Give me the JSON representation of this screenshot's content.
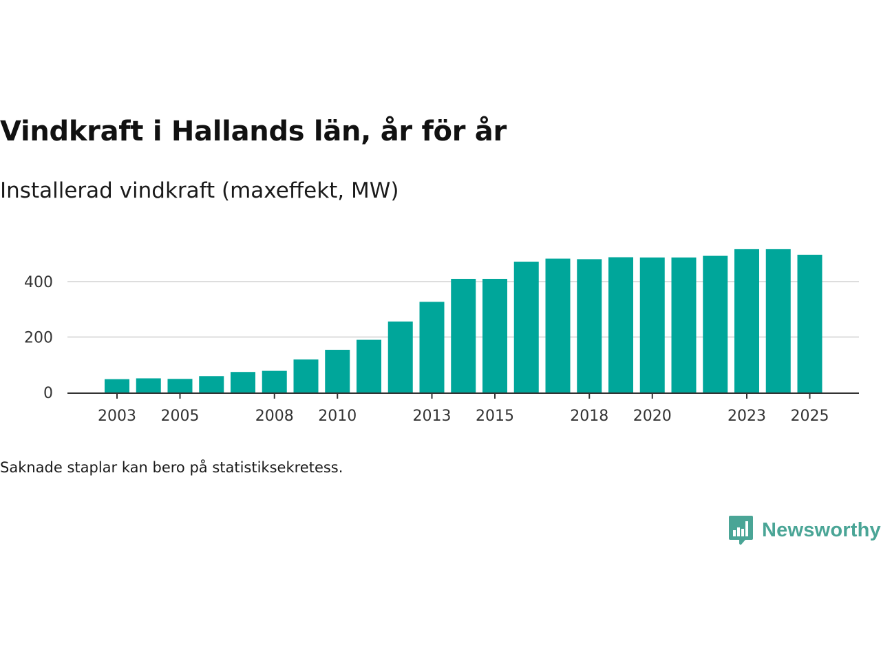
{
  "title": "Vindkraft i Hallands län, år för år",
  "subtitle": "Installerad vindkraft (maxeffekt, MW)",
  "note": "Saknade staplar kan bero på statistiksekretess.",
  "brand": {
    "name": "Newsworthy"
  },
  "colors": {
    "bar": "#00a69a",
    "grid": "#dddddd",
    "axis": "#333333",
    "brand": "#4aa596"
  },
  "chart_data": {
    "type": "bar",
    "title": "Vindkraft i Hallands län, år för år",
    "subtitle": "Installerad vindkraft (maxeffekt, MW)",
    "xlabel": "",
    "ylabel": "",
    "ylim": [
      0,
      520
    ],
    "yticks": [
      0,
      200,
      400
    ],
    "grid": true,
    "categories": [
      "2003",
      "2004",
      "2005",
      "2006",
      "2007",
      "2008",
      "2009",
      "2010",
      "2011",
      "2012",
      "2013",
      "2014",
      "2015",
      "2016",
      "2017",
      "2018",
      "2019",
      "2020",
      "2021",
      "2022",
      "2023",
      "2024",
      "2025"
    ],
    "values": [
      48,
      51,
      49,
      59,
      74,
      78,
      119,
      154,
      190,
      256,
      327,
      410,
      410,
      472,
      483,
      481,
      488,
      487,
      487,
      493,
      517,
      517,
      497
    ],
    "xtick_labels": [
      "2003",
      "2005",
      "2008",
      "2010",
      "2013",
      "2015",
      "2018",
      "2020",
      "2023",
      "2025"
    ]
  }
}
